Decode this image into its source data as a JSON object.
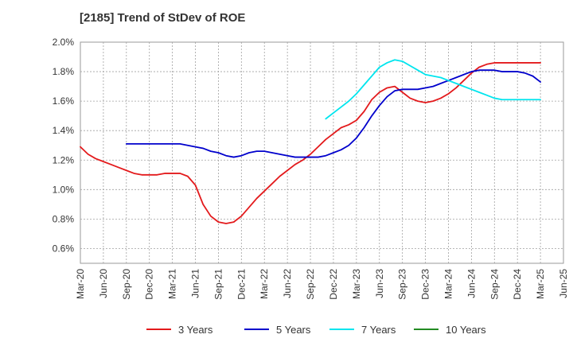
{
  "chart_data": {
    "type": "line",
    "title": "[2185]  Trend of StDev of ROE",
    "xlabel": "",
    "ylabel": "",
    "ylim": [
      0.5,
      2.0
    ],
    "y_ticks": [
      "0.6%",
      "0.8%",
      "1.0%",
      "1.2%",
      "1.4%",
      "1.6%",
      "1.8%",
      "2.0%"
    ],
    "y_tick_values": [
      0.6,
      0.8,
      1.0,
      1.2,
      1.4,
      1.6,
      1.8,
      2.0
    ],
    "x_ticks": [
      "Mar-20",
      "Jun-20",
      "Sep-20",
      "Dec-20",
      "Mar-21",
      "Jun-21",
      "Sep-21",
      "Dec-21",
      "Mar-22",
      "Jun-22",
      "Sep-22",
      "Dec-22",
      "Mar-23",
      "Jun-23",
      "Sep-23",
      "Dec-23",
      "Mar-24",
      "Jun-24",
      "Sep-24",
      "Dec-24",
      "Mar-25",
      "Jun-25"
    ],
    "grid": true,
    "legend_position": "bottom",
    "series": [
      {
        "name": "3 Years",
        "color": "#e31a1c",
        "values": [
          1.29,
          1.24,
          1.21,
          1.19,
          1.17,
          1.15,
          1.13,
          1.11,
          1.1,
          1.1,
          1.1,
          1.11,
          1.11,
          1.11,
          1.09,
          1.03,
          0.9,
          0.82,
          0.78,
          0.77,
          0.78,
          0.82,
          0.88,
          0.94,
          0.99,
          1.04,
          1.09,
          1.13,
          1.17,
          1.2,
          1.24,
          1.29,
          1.34,
          1.38,
          1.42,
          1.44,
          1.47,
          1.53,
          1.61,
          1.66,
          1.69,
          1.7,
          1.66,
          1.62,
          1.6,
          1.59,
          1.6,
          1.62,
          1.65,
          1.69,
          1.74,
          1.79,
          1.83,
          1.85,
          1.86,
          1.86,
          1.86,
          1.86,
          1.86,
          1.86,
          1.86
        ]
      },
      {
        "name": "5 Years",
        "color": "#0000cc",
        "values": [
          null,
          null,
          null,
          null,
          null,
          null,
          1.31,
          1.31,
          1.31,
          1.31,
          1.31,
          1.31,
          1.31,
          1.31,
          1.3,
          1.29,
          1.28,
          1.26,
          1.25,
          1.23,
          1.22,
          1.23,
          1.25,
          1.26,
          1.26,
          1.25,
          1.24,
          1.23,
          1.22,
          1.22,
          1.22,
          1.22,
          1.23,
          1.25,
          1.27,
          1.3,
          1.35,
          1.42,
          1.5,
          1.57,
          1.63,
          1.67,
          1.68,
          1.68,
          1.68,
          1.69,
          1.7,
          1.72,
          1.74,
          1.76,
          1.78,
          1.8,
          1.81,
          1.81,
          1.81,
          1.8,
          1.8,
          1.8,
          1.79,
          1.77,
          1.73
        ]
      },
      {
        "name": "7 Years",
        "color": "#00e5ee",
        "values": [
          null,
          null,
          null,
          null,
          null,
          null,
          null,
          null,
          null,
          null,
          null,
          null,
          null,
          null,
          null,
          null,
          null,
          null,
          null,
          null,
          null,
          null,
          null,
          null,
          null,
          null,
          null,
          null,
          null,
          null,
          null,
          null,
          1.48,
          1.52,
          1.56,
          1.6,
          1.65,
          1.71,
          1.77,
          1.83,
          1.86,
          1.88,
          1.87,
          1.84,
          1.81,
          1.78,
          1.77,
          1.76,
          1.74,
          1.72,
          1.7,
          1.68,
          1.66,
          1.64,
          1.62,
          1.61,
          1.61,
          1.61,
          1.61,
          1.61,
          1.61
        ]
      },
      {
        "name": "10 Years",
        "color": "#228b22",
        "values": []
      }
    ]
  }
}
